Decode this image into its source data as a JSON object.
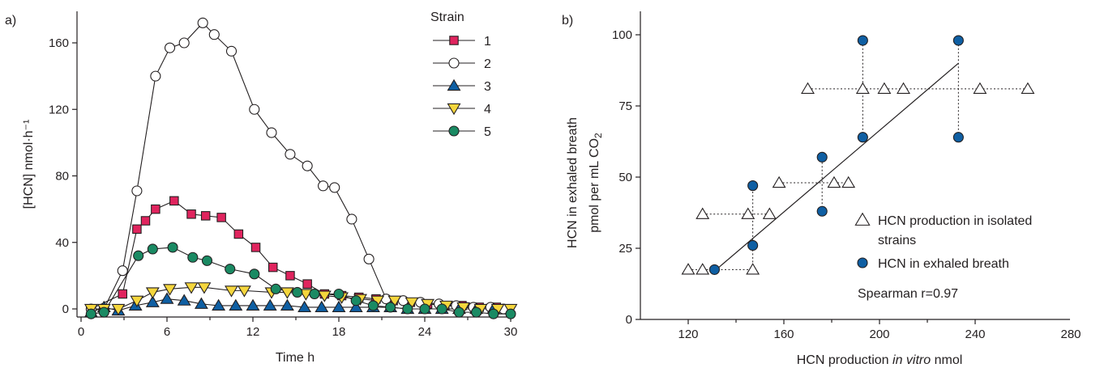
{
  "chart_data": [
    {
      "type": "line",
      "panel_label": "a)",
      "xlabel": "Time h",
      "ylabel": "[HCN] nmol·h⁻¹",
      "xlim": [
        0,
        30
      ],
      "ylim": [
        -5,
        180
      ],
      "xticks": [
        0,
        6,
        12,
        18,
        24,
        30
      ],
      "yticks": [
        0,
        40,
        80,
        120,
        160
      ],
      "grid": false,
      "legend": {
        "title": "Strain",
        "position": "top-right"
      },
      "series": [
        {
          "name": "1",
          "marker": "square",
          "color": "#e0245e",
          "x": [
            0.7,
            2.9,
            3.9,
            4.5,
            5.2,
            6.5,
            7.7,
            8.7,
            9.8,
            11.0,
            12.2,
            13.4,
            14.6,
            15.8,
            17.0,
            18.2,
            19.4,
            20.6,
            21.8,
            23.0,
            24.2,
            25.4,
            26.6,
            27.8,
            29.0,
            29.8
          ],
          "y": [
            0,
            9,
            48,
            53,
            60,
            65,
            57,
            56,
            55,
            45,
            37,
            25,
            20,
            15,
            9,
            8,
            7,
            6,
            5,
            4,
            3,
            2,
            2,
            1,
            1,
            0
          ]
        },
        {
          "name": "2",
          "marker": "circle",
          "color": "#ffffff",
          "x": [
            0.7,
            1.6,
            2.9,
            3.9,
            5.2,
            6.2,
            7.2,
            8.5,
            9.3,
            10.5,
            12.1,
            13.3,
            14.6,
            15.8,
            16.9,
            17.7,
            18.9,
            20.1,
            21.3,
            22.5,
            23.7,
            25.0,
            26.2,
            27.4,
            28.6,
            29.5
          ],
          "y": [
            0,
            0,
            23,
            71,
            140,
            157,
            160,
            172,
            165,
            155,
            120,
            106,
            93,
            86,
            74,
            73,
            54,
            30,
            6,
            5,
            4,
            3,
            2,
            1,
            1,
            0
          ]
        },
        {
          "name": "3",
          "marker": "triangle-up",
          "color": "#0f5fa3",
          "x": [
            0.7,
            1.6,
            2.6,
            3.8,
            5.0,
            6.0,
            7.2,
            8.4,
            9.6,
            10.8,
            12.0,
            13.2,
            14.4,
            15.6,
            16.8,
            18.0,
            19.2,
            20.4,
            21.6,
            22.8,
            24.0,
            25.2,
            26.4,
            27.6,
            28.8
          ],
          "y": [
            -2,
            1,
            -1,
            2,
            4,
            6,
            5,
            3,
            2,
            2,
            2,
            2,
            2,
            1,
            1,
            1,
            1,
            1,
            1,
            0,
            0,
            0,
            0,
            0,
            0
          ]
        },
        {
          "name": "4",
          "marker": "triangle-down",
          "color": "#f5d63d",
          "x": [
            0.7,
            1.6,
            2.6,
            3.9,
            5.0,
            6.2,
            7.7,
            8.6,
            10.5,
            11.4,
            13.3,
            14.4,
            15.7,
            17.0,
            18.2,
            19.5,
            20.7,
            21.9,
            23.1,
            24.2,
            25.5,
            26.7,
            27.9,
            29.1,
            30.0
          ],
          "y": [
            0,
            0,
            0,
            5,
            10,
            12,
            13,
            13,
            11,
            11,
            10,
            10,
            9,
            8,
            7,
            6,
            5,
            5,
            4,
            3,
            2,
            1,
            0,
            0,
            0
          ]
        },
        {
          "name": "5",
          "marker": "circle",
          "color": "#1a8a63",
          "x": [
            0.7,
            1.6,
            4.0,
            5.0,
            6.4,
            7.8,
            8.8,
            10.4,
            12.1,
            13.6,
            15.1,
            16.3,
            18.0,
            19.2,
            20.4,
            21.6,
            22.8,
            24.0,
            25.2,
            26.4,
            27.6,
            28.8,
            30.0
          ],
          "y": [
            -3,
            -2,
            32,
            36,
            37,
            31,
            29,
            24,
            21,
            12,
            10,
            9,
            9,
            5,
            2,
            1,
            0,
            0,
            0,
            -2,
            -2,
            -3,
            -3
          ]
        }
      ]
    },
    {
      "type": "scatter",
      "panel_label": "b)",
      "xlabel_parts": [
        "HCN production ",
        "in vitro",
        " nmol"
      ],
      "ylabel_lines": [
        "HCN in exhaled breath",
        "pmol per mL CO",
        "2"
      ],
      "xlim": [
        100,
        280
      ],
      "ylim": [
        0,
        107
      ],
      "xticks": [
        120,
        160,
        200,
        240,
        280
      ],
      "yticks": [
        0,
        25,
        50,
        75,
        100
      ],
      "grid": false,
      "legend": {
        "position": "bottom-right"
      },
      "series": [
        {
          "name": "HCN production in isolated strains",
          "name_lines": [
            "HCN production in isolated",
            "strains"
          ],
          "marker": "triangle-up-open",
          "points": [
            [
              120,
              17.5
            ],
            [
              126,
              17.5
            ],
            [
              147,
              17.5
            ],
            [
              126,
              37
            ],
            [
              145,
              37
            ],
            [
              154,
              37
            ],
            [
              158,
              48
            ],
            [
              181,
              48
            ],
            [
              187,
              48
            ],
            [
              170,
              81
            ],
            [
              193,
              81
            ],
            [
              202,
              81
            ],
            [
              210,
              81
            ],
            [
              242,
              81
            ],
            [
              262,
              81
            ]
          ]
        },
        {
          "name": "HCN in exhaled breath",
          "marker": "circle",
          "color": "#0f5fa3",
          "points": [
            [
              131,
              17.5
            ],
            [
              147,
              26
            ],
            [
              147,
              47
            ],
            [
              176,
              38
            ],
            [
              176,
              57
            ],
            [
              193,
              98
            ],
            [
              193,
              64
            ],
            [
              233,
              98
            ],
            [
              233,
              64
            ]
          ]
        }
      ],
      "regression_line": {
        "x": [
          131,
          233
        ],
        "y": [
          17,
          90
        ]
      },
      "dotted_connectors": [
        {
          "orientation": "h",
          "y": 17.5,
          "x": [
            120,
            147
          ]
        },
        {
          "orientation": "h",
          "y": 37,
          "x": [
            126,
            154
          ]
        },
        {
          "orientation": "h",
          "y": 48,
          "x": [
            158,
            187
          ]
        },
        {
          "orientation": "h",
          "y": 81,
          "x": [
            170,
            262
          ]
        },
        {
          "orientation": "v",
          "x": 147,
          "y": [
            17.5,
            47
          ]
        },
        {
          "orientation": "v",
          "x": 176,
          "y": [
            38,
            57
          ]
        },
        {
          "orientation": "v",
          "x": 193,
          "y": [
            64,
            98
          ]
        },
        {
          "orientation": "v",
          "x": 233,
          "y": [
            64,
            98
          ]
        }
      ],
      "annotation": "Spearman r=0.97"
    }
  ]
}
